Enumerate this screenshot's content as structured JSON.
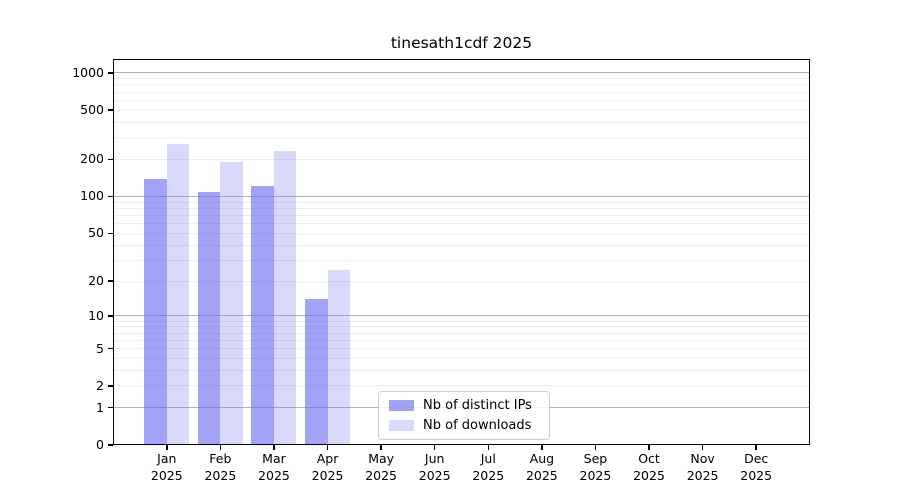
{
  "chart_data": {
    "type": "bar",
    "title": "tinesath1cdf 2025",
    "categories": [
      "Jan",
      "Feb",
      "Mar",
      "Apr",
      "May",
      "Jun",
      "Jul",
      "Aug",
      "Sep",
      "Oct",
      "Nov",
      "Dec"
    ],
    "x_year": "2025",
    "series": [
      {
        "name": "Nb of distinct IPs",
        "color": "#6666ee",
        "alpha": 0.6,
        "values": [
          140,
          108,
          122,
          14,
          0,
          0,
          0,
          0,
          0,
          0,
          0,
          0
        ]
      },
      {
        "name": "Nb of downloads",
        "color": "#6666ee",
        "alpha": 0.25,
        "values": [
          265,
          190,
          235,
          25,
          0,
          0,
          0,
          0,
          0,
          0,
          0,
          0
        ]
      }
    ],
    "yscale": "log1p",
    "yticks": [
      0,
      1,
      2,
      5,
      10,
      20,
      50,
      100,
      200,
      500,
      1000
    ],
    "ylim": [
      0,
      1300
    ],
    "grid": true,
    "legend_position": "lower-center"
  },
  "colors": {
    "major_grid": "#b2b2b2",
    "minor_grid": "#ececec",
    "axis": "#000000",
    "legend_border": "#cccccc",
    "background": "#ffffff"
  }
}
